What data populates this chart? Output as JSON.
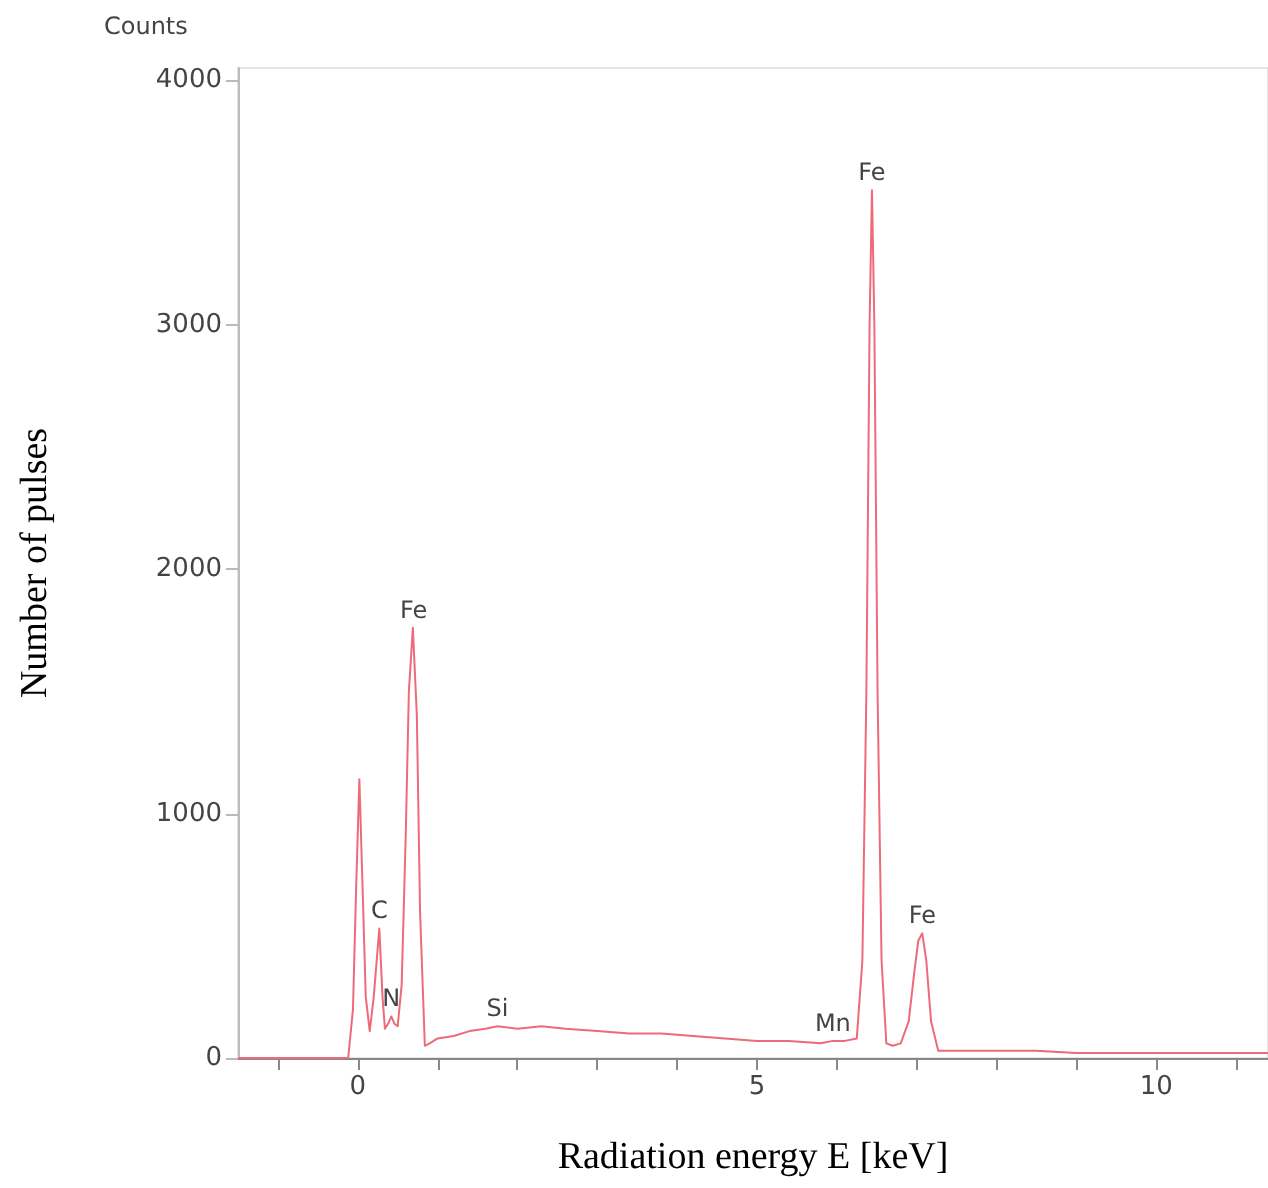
{
  "chart_data": {
    "type": "line",
    "xlabel": "Radiation energy E [keV]",
    "ylabel": "Number of pulses",
    "annotations": [
      "Counts",
      {
        "text": "C",
        "x": 0.27,
        "y": 530
      },
      {
        "text": "N",
        "x": 0.42,
        "y": 170
      },
      {
        "text": "Fe",
        "x": 0.7,
        "y": 1760
      },
      {
        "text": "Si",
        "x": 1.75,
        "y": 130
      },
      {
        "text": "Mn",
        "x": 5.95,
        "y": 70
      },
      {
        "text": "Fe",
        "x": 6.44,
        "y": 3550
      },
      {
        "text": "Fe",
        "x": 7.07,
        "y": 510
      }
    ],
    "series": [
      {
        "color": "#ee6a78",
        "x": [
          -1.5,
          -0.5,
          -0.12,
          -0.06,
          -0.02,
          0.02,
          0.06,
          0.1,
          0.15,
          0.2,
          0.27,
          0.31,
          0.34,
          0.38,
          0.42,
          0.46,
          0.5,
          0.55,
          0.6,
          0.64,
          0.69,
          0.74,
          0.78,
          0.84,
          0.9,
          1.0,
          1.2,
          1.4,
          1.6,
          1.75,
          2.0,
          2.3,
          2.6,
          3.0,
          3.4,
          3.8,
          4.2,
          4.6,
          5.0,
          5.4,
          5.8,
          5.95,
          6.1,
          6.25,
          6.32,
          6.37,
          6.41,
          6.44,
          6.47,
          6.51,
          6.56,
          6.62,
          6.7,
          6.8,
          6.9,
          6.97,
          7.02,
          7.07,
          7.12,
          7.18,
          7.27,
          7.5,
          8.0,
          8.5,
          9.0,
          9.5,
          10.0,
          10.5,
          11.0,
          11.4
        ],
        "values": [
          0,
          0,
          0,
          200,
          700,
          1140,
          700,
          250,
          110,
          250,
          530,
          250,
          120,
          140,
          170,
          140,
          130,
          300,
          900,
          1500,
          1760,
          1400,
          600,
          50,
          60,
          80,
          90,
          110,
          120,
          130,
          120,
          130,
          120,
          110,
          100,
          100,
          90,
          80,
          70,
          70,
          60,
          70,
          70,
          80,
          400,
          1500,
          3000,
          3550,
          3000,
          1500,
          400,
          60,
          50,
          60,
          150,
          350,
          480,
          510,
          400,
          150,
          30,
          30,
          30,
          30,
          20,
          20,
          20,
          20,
          20,
          20
        ]
      }
    ],
    "xlim": [
      -1.5,
      11.4
    ],
    "xticks": [
      {
        "value": -1,
        "label": null
      },
      0,
      {
        "value": 1,
        "label": null
      },
      {
        "value": 2,
        "label": null
      },
      {
        "value": 3,
        "label": null
      },
      {
        "value": 4,
        "label": null
      },
      5,
      {
        "value": 6,
        "label": null
      },
      {
        "value": 7,
        "label": null
      },
      {
        "value": 8,
        "label": null
      },
      {
        "value": 9,
        "label": null
      },
      10,
      {
        "value": 11,
        "label": null
      }
    ],
    "ylim": [
      0,
      4050
    ],
    "yticks": [
      0,
      1000,
      2000,
      3000,
      4000
    ],
    "grid": false,
    "marker": "none",
    "line_style": "solid"
  }
}
